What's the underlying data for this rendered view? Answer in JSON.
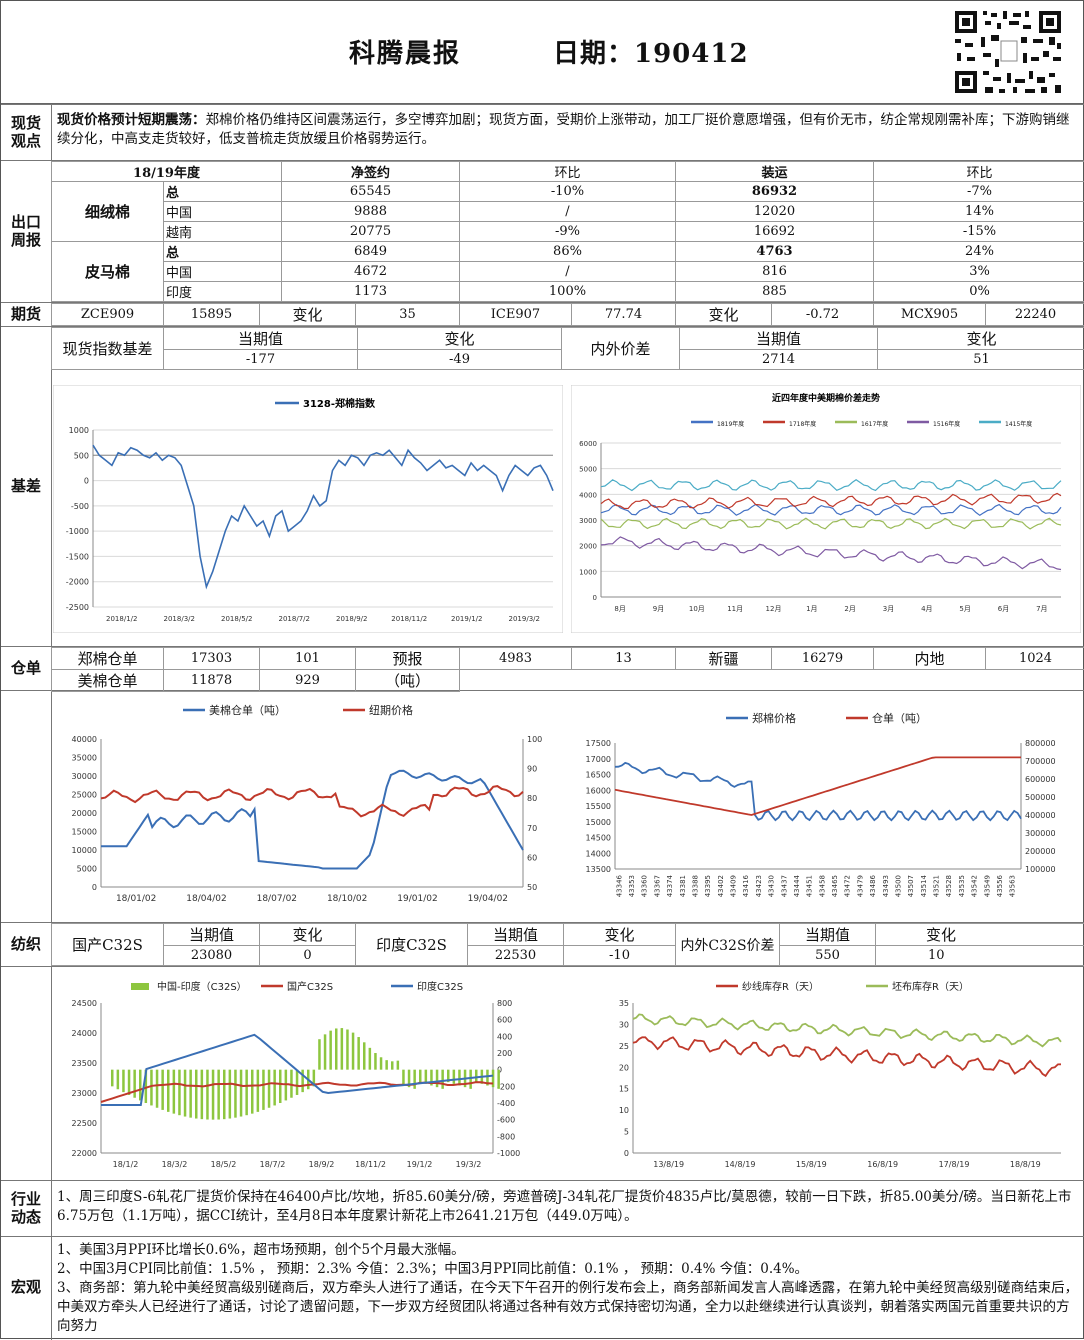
{
  "header": {
    "title": "科腾晨报",
    "date": "日期：190412"
  },
  "spot": {
    "label": "现货\n观点",
    "bold": "现货价格预计短期震荡：",
    "text": "郑棉价格仍维持区间震荡运行，多空博弈加剧；现货方面，受期价上涨带动，加工厂挺价意愿增强，但有价无市，纺企常规刚需补库；下游购销继续分化，中高支走货较好，低支普梳走货放缓且价格弱势运行。"
  },
  "export": {
    "label": "出口\n周报",
    "headers": [
      "18/19年度",
      "净签约",
      "环比",
      "装运",
      "环比"
    ],
    "groups": [
      {
        "name": "细绒棉",
        "rows": [
          [
            "总",
            "65545",
            "-10%",
            "86932",
            "-7%"
          ],
          [
            "中国",
            "9888",
            "/",
            "12020",
            "14%"
          ],
          [
            "越南",
            "20775",
            "-9%",
            "16692",
            "-15%"
          ]
        ]
      },
      {
        "name": "皮马棉",
        "rows": [
          [
            "总",
            "6849",
            "86%",
            "4763",
            "24%"
          ],
          [
            "中国",
            "4672",
            "/",
            "816",
            "3%"
          ],
          [
            "印度",
            "1173",
            "100%",
            "885",
            "0%"
          ]
        ]
      }
    ]
  },
  "futures": {
    "label": "期货",
    "cells": [
      "ZCE909",
      "15895",
      "变化",
      "35",
      "ICE907",
      "77.74",
      "变化",
      "-0.72",
      "MCX905",
      "22240"
    ]
  },
  "basis": {
    "label": "基差",
    "row1": [
      "现货指数基差",
      "当期值",
      "变化",
      "内外价差",
      "当期值",
      "变化"
    ],
    "row2": [
      "-177",
      "-49",
      "2714",
      "51"
    ]
  },
  "warehouse": {
    "label": "仓单",
    "row1": [
      "郑棉仓单",
      "17303",
      "101",
      "预报",
      "4983",
      "13",
      "新疆",
      "16279",
      "内地",
      "1024"
    ],
    "row2": [
      "美棉仓单",
      "11878",
      "929",
      "（吨）"
    ]
  },
  "textile": {
    "label": "纺织",
    "row1": [
      "国产C32S",
      "当期值",
      "变化",
      "印度C32S",
      "当期值",
      "变化",
      "内外C32S价差",
      "当期值",
      "变化"
    ],
    "row2": [
      "23080",
      "0",
      "22530",
      "-10",
      "550",
      "10"
    ]
  },
  "industry": {
    "label": "行业\n动态",
    "text": "1、周三印度S-6轧花厂提货价保持在46400卢比/坎地，折85.60美分/磅，旁遮普磅J-34轧花厂提货价4835卢比/莫恩德，较前一日下跌，折85.00美分/磅。当日新花上市6.75万包（1.1万吨），据CCI统计，至4月8日本年度累计新花上市2641.21万包（449.0万吨）。"
  },
  "macro": {
    "label": "宏观",
    "lines": [
      "1、美国3月PPI环比增长0.6%，超市场预期，创个5个月最大涨幅。",
      "2、中国3月CPI同比前值：1.5%   ， 预期：2.3% 今值：2.3%；中国3月PPI同比前值：0.1%   ， 预期：0.4% 今值：0.4%。",
      "3、商务部：第九轮中美经贸高级别磋商后，双方牵头人进行了通话，在今天下午召开的例行发布会上，商务部新闻发言人高峰透露，在第九轮中美经贸高级别磋商结束后，中美双方牵头人已经进行了通话，讨论了遗留问题，下一步双方经贸团队将通过各种有效方式保持密切沟通，全力以赴继续进行认真谈判，朝着落实两国元首重要共识的方向努力"
    ]
  },
  "chart_data": [
    {
      "type": "line",
      "id": "zhengmian-basis",
      "series": [
        {
          "name": "3128-郑棉指数",
          "color": "#3a6fb5"
        }
      ],
      "y_ticks": [
        "1000",
        "500",
        "0",
        "-500",
        "-1000",
        "-1500",
        "-2000",
        "-2500"
      ],
      "x_ticks": [
        "2018/1/2",
        "2018/3/2",
        "2018/5/2",
        "2018/7/2",
        "2018/9/2",
        "2018/11/2",
        "2019/1/2",
        "2019/3/2"
      ],
      "ylim": [
        -2500,
        1000
      ],
      "values": [
        700,
        500,
        400,
        300,
        550,
        500,
        650,
        600,
        500,
        450,
        550,
        400,
        500,
        450,
        300,
        -100,
        -500,
        -1500,
        -2100,
        -1800,
        -1400,
        -1000,
        -700,
        -800,
        -500,
        -700,
        -900,
        -800,
        -1100,
        -700,
        -600,
        -1000,
        -900,
        -800,
        -600,
        -300,
        -500,
        -400,
        200,
        400,
        300,
        500,
        450,
        300,
        500,
        550,
        500,
        600,
        450,
        300,
        600,
        450,
        350,
        200,
        300,
        400,
        250,
        300,
        200,
        100,
        350,
        200,
        300,
        200,
        100,
        -200,
        100,
        300,
        200,
        100,
        250,
        300,
        100,
        -200
      ]
    },
    {
      "type": "line",
      "id": "us-cn-spread",
      "title": "近四年度中美期棉价差走势",
      "series": [
        {
          "name": "1819年度",
          "color": "#4472c4"
        },
        {
          "name": "1718年度",
          "color": "#c0392b"
        },
        {
          "name": "1617年度",
          "color": "#9bbb59"
        },
        {
          "name": "1516年度",
          "color": "#7f5aa2"
        },
        {
          "name": "1415年度",
          "color": "#4bacc6"
        }
      ],
      "y_ticks": [
        "6000",
        "5000",
        "4000",
        "3000",
        "2000",
        "1000",
        "0"
      ],
      "x_ticks": [
        "8月",
        "9月",
        "10月",
        "11月",
        "12月",
        "1月",
        "2月",
        "3月",
        "4月",
        "5月",
        "6月",
        "7月"
      ],
      "ylim": [
        0,
        6000
      ]
    },
    {
      "type": "line",
      "id": "us-warehouse",
      "series": [
        {
          "name": "美棉仓单（吨）",
          "color": "#3a6fb5",
          "axis": "left"
        },
        {
          "name": "纽期价格",
          "color": "#c0392b",
          "axis": "right"
        }
      ],
      "y_ticks": [
        "40000",
        "35000",
        "30000",
        "25000",
        "20000",
        "15000",
        "10000",
        "5000",
        "0"
      ],
      "y2_ticks": [
        "100",
        "90",
        "80",
        "70",
        "60",
        "50"
      ],
      "x_ticks": [
        "18/01/02",
        "18/04/02",
        "18/07/02",
        "18/10/02",
        "19/01/02",
        "19/04/02"
      ],
      "ylim": [
        0,
        40000
      ],
      "y2lim": [
        50,
        100
      ]
    },
    {
      "type": "line",
      "id": "zce-warehouse",
      "series": [
        {
          "name": "郑棉价格",
          "color": "#3a6fb5",
          "axis": "left"
        },
        {
          "name": "仓单（吨）",
          "color": "#c0392b",
          "axis": "right"
        }
      ],
      "y_ticks": [
        "17500",
        "17000",
        "16500",
        "16000",
        "15500",
        "15000",
        "14500",
        "14000",
        "13500"
      ],
      "y2_ticks": [
        "800000",
        "700000",
        "600000",
        "500000",
        "400000",
        "300000",
        "200000",
        "100000"
      ],
      "x_ticks": [
        "43346",
        "43353",
        "43360",
        "43367",
        "43374",
        "43381",
        "43388",
        "43395",
        "43402",
        "43409",
        "43416",
        "43423",
        "43430",
        "43437",
        "43444",
        "43451",
        "43458",
        "43465",
        "43472",
        "43479",
        "43486",
        "43493",
        "43500",
        "43507",
        "43514",
        "43521",
        "43528",
        "43535",
        "43542",
        "43549",
        "43556",
        "43563"
      ],
      "ylim": [
        13500,
        17500
      ],
      "y2lim": [
        100000,
        800000
      ]
    },
    {
      "type": "line",
      "id": "c32s",
      "series": [
        {
          "name": "中国-印度（C32S）",
          "color": "#8dc63f",
          "type": "bar",
          "axis": "right"
        },
        {
          "name": "国产C32S",
          "color": "#c0392b",
          "axis": "left"
        },
        {
          "name": "印度C32S",
          "color": "#3a6fb5",
          "axis": "left"
        }
      ],
      "y_ticks": [
        "24500",
        "24000",
        "23500",
        "23000",
        "22500",
        "22000"
      ],
      "y2_ticks": [
        "800",
        "600",
        "400",
        "200",
        "0",
        "-200",
        "-400",
        "-600",
        "-800",
        "-1000"
      ],
      "x_ticks": [
        "18/1/2",
        "18/3/2",
        "18/5/2",
        "18/7/2",
        "18/9/2",
        "18/11/2",
        "19/1/2",
        "19/3/2"
      ],
      "ylim": [
        22000,
        24500
      ],
      "y2lim": [
        -1000,
        800
      ]
    },
    {
      "type": "line",
      "id": "inventory-days",
      "series": [
        {
          "name": "纱线库存R（天）",
          "color": "#c0392b"
        },
        {
          "name": "坯布库存R（天）",
          "color": "#9bbb59"
        }
      ],
      "y_ticks": [
        "35",
        "30",
        "25",
        "20",
        "15",
        "10",
        "5",
        "0"
      ],
      "x_ticks": [
        "13/8/19",
        "14/8/19",
        "15/8/19",
        "16/8/19",
        "17/8/19",
        "18/8/19"
      ],
      "ylim": [
        0,
        35
      ]
    }
  ]
}
